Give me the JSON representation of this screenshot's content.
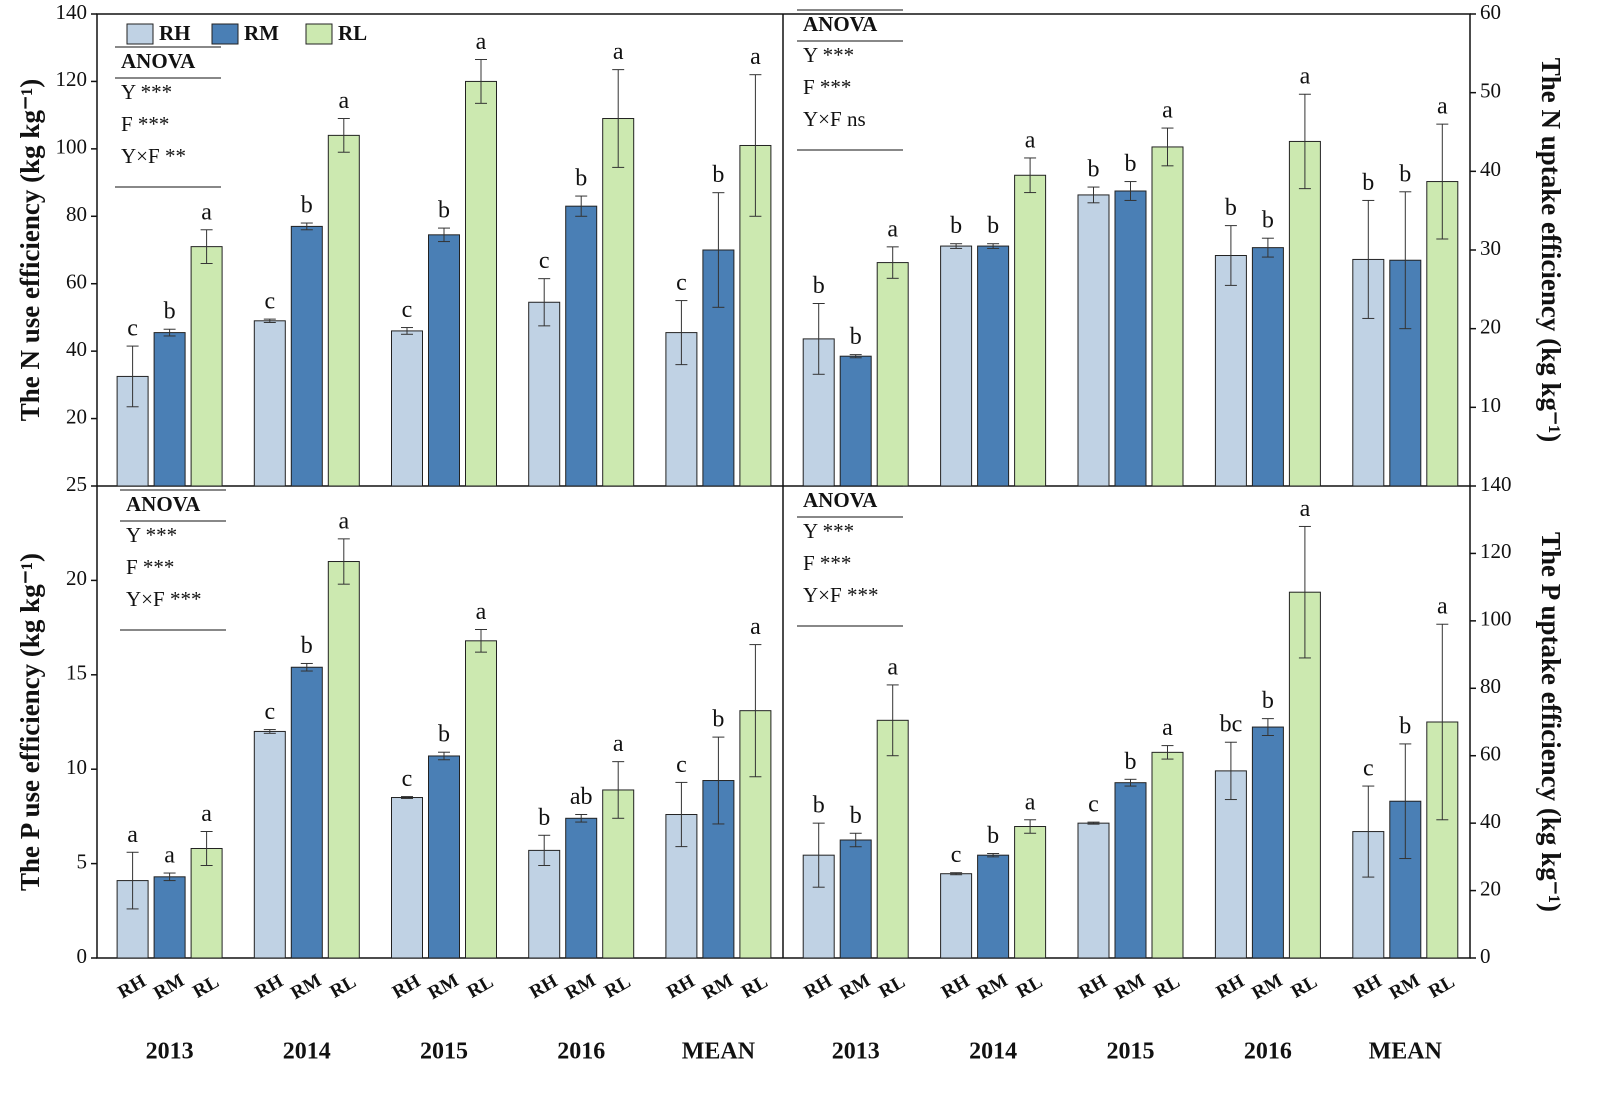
{
  "chart_data": [
    {
      "type": "bar",
      "y_label": "The N use efficiency (kg kg⁻¹)",
      "axis_side": "left",
      "categories": [
        "2013",
        "2014",
        "2015",
        "2016",
        "MEAN"
      ],
      "ylim": [
        0,
        140
      ],
      "yticks": [
        20,
        40,
        60,
        80,
        100,
        120,
        140
      ],
      "legend": "upper left",
      "anova": {
        "title": "ANOVA",
        "rows": [
          "Y ***",
          "F  ***",
          "Y×F  **"
        ]
      },
      "series": [
        {
          "name": "RH",
          "color": "#c0d2e4",
          "values": [
            32.5,
            49,
            46,
            54.5,
            45.5
          ],
          "errors": [
            9,
            0.5,
            1,
            7,
            9.5
          ],
          "letters": [
            "c",
            "c",
            "c",
            "c",
            "c"
          ]
        },
        {
          "name": "RM",
          "color": "#4a7fb5",
          "values": [
            45.5,
            77,
            74.5,
            83,
            70
          ],
          "errors": [
            1,
            1,
            2,
            3,
            17
          ],
          "letters": [
            "b",
            "b",
            "b",
            "b",
            "b"
          ]
        },
        {
          "name": "RL",
          "color": "#cce9b0",
          "values": [
            71,
            104,
            120,
            109,
            101
          ],
          "errors": [
            5,
            5,
            6.5,
            14.5,
            21
          ],
          "letters": [
            "a",
            "a",
            "a",
            "a",
            "a"
          ]
        }
      ]
    },
    {
      "type": "bar",
      "y_label": "The N uptake efficiency (kg kg⁻¹)",
      "axis_side": "right",
      "categories": [
        "2013",
        "2014",
        "2015",
        "2016",
        "MEAN"
      ],
      "ylim": [
        0,
        60
      ],
      "yticks": [
        10,
        20,
        30,
        40,
        50,
        60
      ],
      "anova": {
        "title": "ANOVA",
        "rows": [
          "Y ***",
          "F  ***",
          "Y×F  ns"
        ]
      },
      "series": [
        {
          "name": "RH",
          "color": "#c0d2e4",
          "values": [
            18.7,
            30.5,
            37,
            29.3,
            28.8
          ],
          "errors": [
            4.5,
            0.3,
            1,
            3.8,
            7.5
          ],
          "letters": [
            "b",
            "b",
            "b",
            "b",
            "b"
          ]
        },
        {
          "name": "RM",
          "color": "#4a7fb5",
          "values": [
            16.5,
            30.5,
            37.5,
            30.3,
            28.7
          ],
          "errors": [
            0.2,
            0.3,
            1.2,
            1.2,
            8.7
          ],
          "letters": [
            "b",
            "b",
            "b",
            "b",
            "b"
          ]
        },
        {
          "name": "RL",
          "color": "#cce9b0",
          "values": [
            28.4,
            39.5,
            43.1,
            43.8,
            38.7
          ],
          "errors": [
            2,
            2.2,
            2.4,
            6,
            7.3
          ],
          "letters": [
            "a",
            "a",
            "a",
            "a",
            "a"
          ]
        }
      ]
    },
    {
      "type": "bar",
      "y_label": "The P use efficiency (kg kg⁻¹)",
      "axis_side": "left",
      "categories": [
        "2013",
        "2014",
        "2015",
        "2016",
        "MEAN"
      ],
      "ylim": [
        0,
        25
      ],
      "yticks": [
        0,
        5,
        10,
        15,
        20,
        25
      ],
      "anova": {
        "title": "ANOVA",
        "rows": [
          "Y ***",
          "F  ***",
          "Y×F  ***"
        ]
      },
      "series": [
        {
          "name": "RH",
          "color": "#c0d2e4",
          "values": [
            4.1,
            12,
            8.5,
            5.7,
            7.6
          ],
          "errors": [
            1.5,
            0.1,
            0.05,
            0.8,
            1.7
          ],
          "letters": [
            "a",
            "c",
            "c",
            "b",
            "c"
          ]
        },
        {
          "name": "RM",
          "color": "#4a7fb5",
          "values": [
            4.3,
            15.4,
            10.7,
            7.4,
            9.4
          ],
          "errors": [
            0.2,
            0.2,
            0.2,
            0.2,
            2.3
          ],
          "letters": [
            "a",
            "b",
            "b",
            "ab",
            "b"
          ]
        },
        {
          "name": "RL",
          "color": "#cce9b0",
          "values": [
            5.8,
            21,
            16.8,
            8.9,
            13.1
          ],
          "errors": [
            0.9,
            1.2,
            0.6,
            1.5,
            3.5
          ],
          "letters": [
            "a",
            "a",
            "a",
            "a",
            "a"
          ]
        }
      ]
    },
    {
      "type": "bar",
      "y_label": "The P uptake efficiency (kg kg⁻¹)",
      "axis_side": "right",
      "categories": [
        "2013",
        "2014",
        "2015",
        "2016",
        "MEAN"
      ],
      "ylim": [
        0,
        140
      ],
      "yticks": [
        0,
        20,
        40,
        60,
        80,
        100,
        120,
        140
      ],
      "anova": {
        "title": "ANOVA",
        "rows": [
          "Y ***",
          "F  ***",
          "Y×F  ***"
        ]
      },
      "series": [
        {
          "name": "RH",
          "color": "#c0d2e4",
          "values": [
            30.5,
            25,
            40,
            55.5,
            37.5
          ],
          "errors": [
            9.5,
            0.3,
            0.3,
            8.5,
            13.5
          ],
          "letters": [
            "b",
            "c",
            "c",
            "bc",
            "c"
          ]
        },
        {
          "name": "RM",
          "color": "#4a7fb5",
          "values": [
            35,
            30.5,
            52,
            68.5,
            46.5
          ],
          "errors": [
            2,
            0.5,
            1,
            2.5,
            17
          ],
          "letters": [
            "b",
            "b",
            "b",
            "b",
            "b"
          ]
        },
        {
          "name": "RL",
          "color": "#cce9b0",
          "values": [
            70.5,
            39,
            61,
            108.5,
            70
          ],
          "errors": [
            10.5,
            2,
            2,
            19.5,
            29
          ],
          "letters": [
            "a",
            "a",
            "a",
            "a",
            "a"
          ]
        }
      ]
    }
  ]
}
